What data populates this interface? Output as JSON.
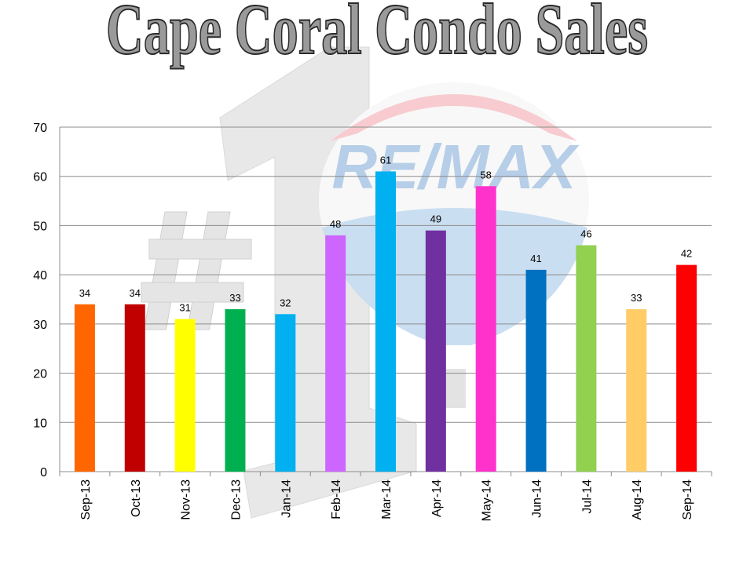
{
  "chart_data": {
    "type": "bar",
    "title": "Cape Coral Condo Sales",
    "watermark": "RE/MAX",
    "categories": [
      "Sep-13",
      "Oct-13",
      "Nov-13",
      "Dec-13",
      "Jan-14",
      "Feb-14",
      "Mar-14",
      "Apr-14",
      "May-14",
      "Jun-14",
      "Jul-14",
      "Aug-14",
      "Sep-14"
    ],
    "values": [
      34,
      34,
      31,
      33,
      32,
      48,
      61,
      49,
      58,
      41,
      46,
      33,
      42
    ],
    "colors": [
      "#ff6600",
      "#c00000",
      "#ffff00",
      "#00b050",
      "#00b0f0",
      "#cc66ff",
      "#00b0f0",
      "#7030a0",
      "#ff33cc",
      "#0070c0",
      "#92d050",
      "#ffcc66",
      "#ff0000"
    ],
    "ylim": [
      0,
      70
    ],
    "yticks": [
      0,
      10,
      20,
      30,
      40,
      50,
      60,
      70
    ],
    "grid": true
  }
}
